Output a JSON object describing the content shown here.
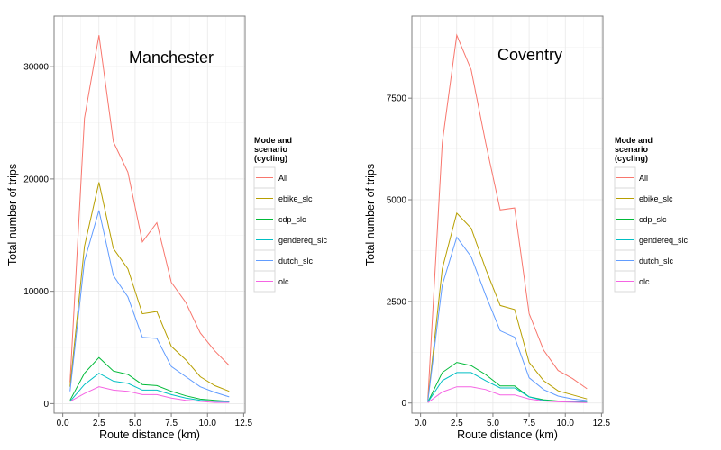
{
  "chart_data": [
    {
      "type": "line",
      "title": "Manchester",
      "xlabel": "Route distance (km)",
      "ylabel": "Total number of trips",
      "xlim": [
        -0.6,
        12.6
      ],
      "ylim": [
        -850,
        34500
      ],
      "xticks": [
        0.0,
        2.5,
        5.0,
        7.5,
        10.0,
        12.5
      ],
      "xtick_labels": [
        "0.0",
        "2.5",
        "5.0",
        "7.5",
        "10.0",
        "12.5"
      ],
      "yticks": [
        0,
        10000,
        20000,
        30000
      ],
      "ytick_labels": [
        "0",
        "10000",
        "20000",
        "30000"
      ],
      "grid": true,
      "x": [
        0.5,
        1.5,
        2.5,
        3.5,
        4.5,
        5.5,
        6.5,
        7.5,
        8.5,
        9.5,
        10.5,
        11.5
      ],
      "legend_title": "Mode and scenario (cycling)",
      "legend_title_lines": [
        "Mode and",
        "scenario",
        "(cycling)"
      ],
      "legend_position": "right",
      "series": [
        {
          "name": "All",
          "color": "#F8766D",
          "values": [
            1900,
            25400,
            32800,
            23300,
            20600,
            14400,
            16100,
            10800,
            9000,
            6300,
            4700,
            3400
          ]
        },
        {
          "name": "ebike_slc",
          "color": "#B79F00",
          "values": [
            1500,
            14000,
            19700,
            13800,
            12000,
            8000,
            8200,
            5100,
            3900,
            2400,
            1600,
            1100
          ]
        },
        {
          "name": "cdp_slc",
          "color": "#00BA38",
          "values": [
            300,
            2700,
            4100,
            2900,
            2600,
            1700,
            1600,
            1100,
            700,
            400,
            300,
            200
          ]
        },
        {
          "name": "gendereq_slc",
          "color": "#00BFC4",
          "values": [
            200,
            1700,
            2700,
            2000,
            1800,
            1200,
            1200,
            800,
            500,
            300,
            200,
            150
          ]
        },
        {
          "name": "dutch_slc",
          "color": "#619CFF",
          "values": [
            1100,
            12700,
            17200,
            11400,
            9500,
            5900,
            5800,
            3300,
            2400,
            1500,
            1000,
            600
          ]
        },
        {
          "name": "olc",
          "color": "#F564E3",
          "values": [
            200,
            900,
            1500,
            1200,
            1100,
            800,
            800,
            500,
            300,
            200,
            100,
            100
          ]
        }
      ]
    },
    {
      "type": "line",
      "title": "Coventry",
      "xlabel": "Route distance (km)",
      "ylabel": "Total number of trips",
      "xlim": [
        -0.6,
        12.6
      ],
      "ylim": [
        -250,
        9520
      ],
      "xticks": [
        0.0,
        2.5,
        5.0,
        7.5,
        10.0,
        12.5
      ],
      "xtick_labels": [
        "0.0",
        "2.5",
        "5.0",
        "7.5",
        "10.0",
        "12.5"
      ],
      "yticks": [
        0,
        2500,
        5000,
        7500
      ],
      "ytick_labels": [
        "0",
        "2500",
        "5000",
        "7500"
      ],
      "grid": true,
      "x": [
        0.5,
        1.5,
        2.5,
        3.5,
        4.5,
        5.5,
        6.5,
        7.5,
        8.5,
        9.5,
        10.5,
        11.5
      ],
      "legend_title": "Mode and scenario (cycling)",
      "legend_title_lines": [
        "Mode and",
        "scenario",
        "(cycling)"
      ],
      "legend_position": "right",
      "series": [
        {
          "name": "All",
          "color": "#F8766D",
          "values": [
            80,
            6400,
            9050,
            8200,
            6400,
            4750,
            4800,
            2200,
            1300,
            800,
            600,
            350
          ]
        },
        {
          "name": "ebike_slc",
          "color": "#B79F00",
          "values": [
            50,
            3300,
            4670,
            4300,
            3300,
            2400,
            2300,
            1000,
            550,
            300,
            200,
            100
          ]
        },
        {
          "name": "cdp_slc",
          "color": "#00BA38",
          "values": [
            20,
            750,
            1000,
            920,
            700,
            420,
            420,
            150,
            80,
            50,
            30,
            20
          ]
        },
        {
          "name": "gendereq_slc",
          "color": "#00BFC4",
          "values": [
            20,
            550,
            750,
            750,
            550,
            370,
            370,
            150,
            60,
            40,
            30,
            20
          ]
        },
        {
          "name": "dutch_slc",
          "color": "#619CFF",
          "values": [
            40,
            2900,
            4080,
            3600,
            2650,
            1780,
            1620,
            620,
            330,
            170,
            100,
            60
          ]
        },
        {
          "name": "olc",
          "color": "#F564E3",
          "values": [
            10,
            270,
            400,
            400,
            330,
            200,
            200,
            100,
            50,
            30,
            20,
            10
          ]
        }
      ]
    }
  ]
}
